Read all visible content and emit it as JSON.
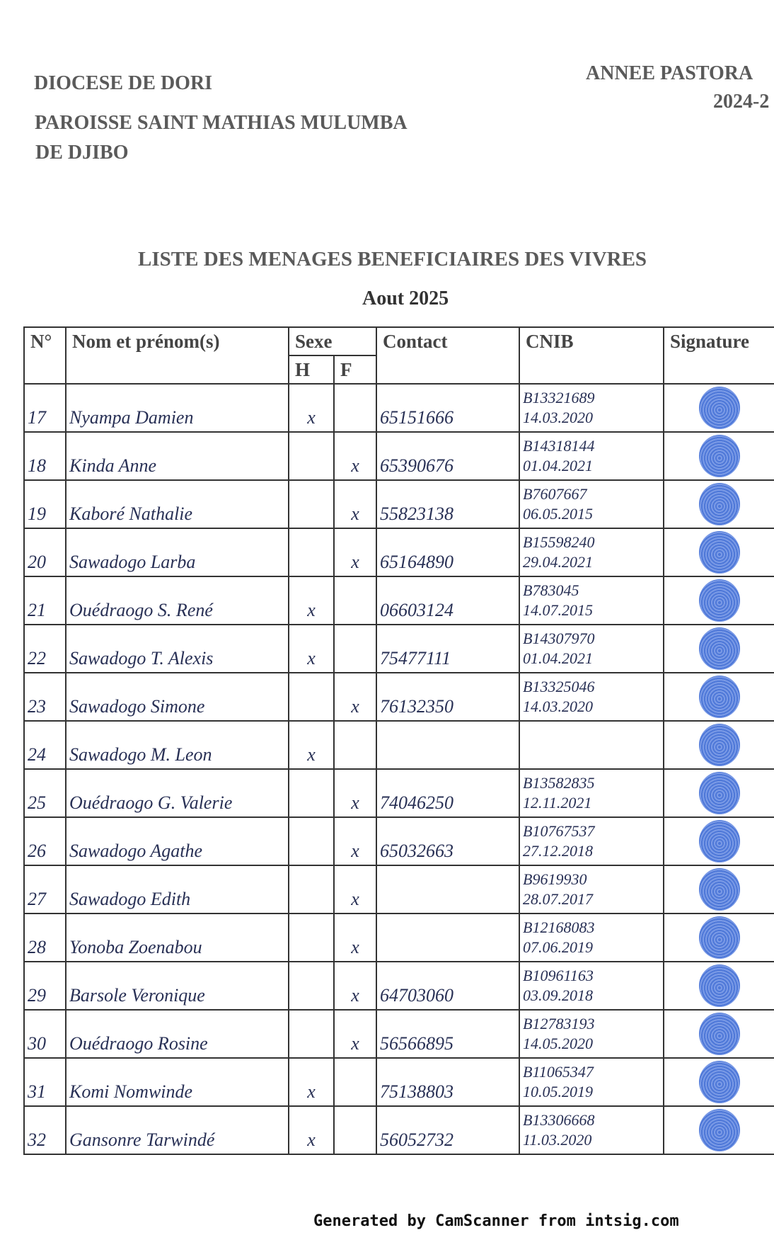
{
  "header": {
    "diocese": "DIOCESE DE DORI",
    "parish_line1": "PAROISSE SAINT MATHIAS MULUMBA",
    "parish_line2": "DE DJIBO",
    "year_label": "ANNEE PASTORA",
    "year_value": "2024-2"
  },
  "title": "LISTE DES MENAGES BENEFICIAIRES DES VIVRES",
  "subtitle": "Aout 2025",
  "columns": {
    "no": "N°",
    "name": "Nom et prénom(s)",
    "sex": "Sexe",
    "h": "H",
    "f": "F",
    "contact": "Contact",
    "cnib": "CNIB",
    "signature": "Signature"
  },
  "rows": [
    {
      "no": "17",
      "name": "Nyampa Damien",
      "h": "x",
      "f": "",
      "contact": "65151666",
      "cnib_no": "B13321689",
      "cnib_date": "14.03.2020"
    },
    {
      "no": "18",
      "name": "Kinda Anne",
      "h": "",
      "f": "x",
      "contact": "65390676",
      "cnib_no": "B14318144",
      "cnib_date": "01.04.2021"
    },
    {
      "no": "19",
      "name": "Kaboré Nathalie",
      "h": "",
      "f": "x",
      "contact": "55823138",
      "cnib_no": "B7607667",
      "cnib_date": "06.05.2015"
    },
    {
      "no": "20",
      "name": "Sawadogo Larba",
      "h": "",
      "f": "x",
      "contact": "65164890",
      "cnib_no": "B15598240",
      "cnib_date": "29.04.2021"
    },
    {
      "no": "21",
      "name": "Ouédraogo S. René",
      "h": "x",
      "f": "",
      "contact": "06603124",
      "cnib_no": "B783045",
      "cnib_date": "14.07.2015"
    },
    {
      "no": "22",
      "name": "Sawadogo T. Alexis",
      "h": "x",
      "f": "",
      "contact": "75477111",
      "cnib_no": "B14307970",
      "cnib_date": "01.04.2021"
    },
    {
      "no": "23",
      "name": "Sawadogo Simone",
      "h": "",
      "f": "x",
      "contact": "76132350",
      "cnib_no": "B13325046",
      "cnib_date": "14.03.2020"
    },
    {
      "no": "24",
      "name": "Sawadogo M. Leon",
      "h": "x",
      "f": "",
      "contact": "",
      "cnib_no": "",
      "cnib_date": ""
    },
    {
      "no": "25",
      "name": "Ouédraogo G. Valerie",
      "h": "",
      "f": "x",
      "contact": "74046250",
      "cnib_no": "B13582835",
      "cnib_date": "12.11.2021"
    },
    {
      "no": "26",
      "name": "Sawadogo Agathe",
      "h": "",
      "f": "x",
      "contact": "65032663",
      "cnib_no": "B10767537",
      "cnib_date": "27.12.2018"
    },
    {
      "no": "27",
      "name": "Sawadogo Edith",
      "h": "",
      "f": "x",
      "contact": "",
      "cnib_no": "B9619930",
      "cnib_date": "28.07.2017"
    },
    {
      "no": "28",
      "name": "Yonoba Zoenabou",
      "h": "",
      "f": "x",
      "contact": "",
      "cnib_no": "B12168083",
      "cnib_date": "07.06.2019"
    },
    {
      "no": "29",
      "name": "Barsole Veronique",
      "h": "",
      "f": "x",
      "contact": "64703060",
      "cnib_no": "B10961163",
      "cnib_date": "03.09.2018"
    },
    {
      "no": "30",
      "name": "Ouédraogo Rosine",
      "h": "",
      "f": "x",
      "contact": "56566895",
      "cnib_no": "B12783193",
      "cnib_date": "14.05.2020"
    },
    {
      "no": "31",
      "name": "Komi Nomwinde",
      "h": "x",
      "f": "",
      "contact": "75138803",
      "cnib_no": "B11065347",
      "cnib_date": "10.05.2019"
    },
    {
      "no": "32",
      "name": "Gansonre Tarwindé",
      "h": "x",
      "f": "",
      "contact": "56052732",
      "cnib_no": "B13306668",
      "cnib_date": "11.03.2020"
    }
  ],
  "signature_icon": "fingerprint-icon",
  "fingerprint_color": "#4e78d8",
  "footer": "Generated by CamScanner from intsig.com"
}
